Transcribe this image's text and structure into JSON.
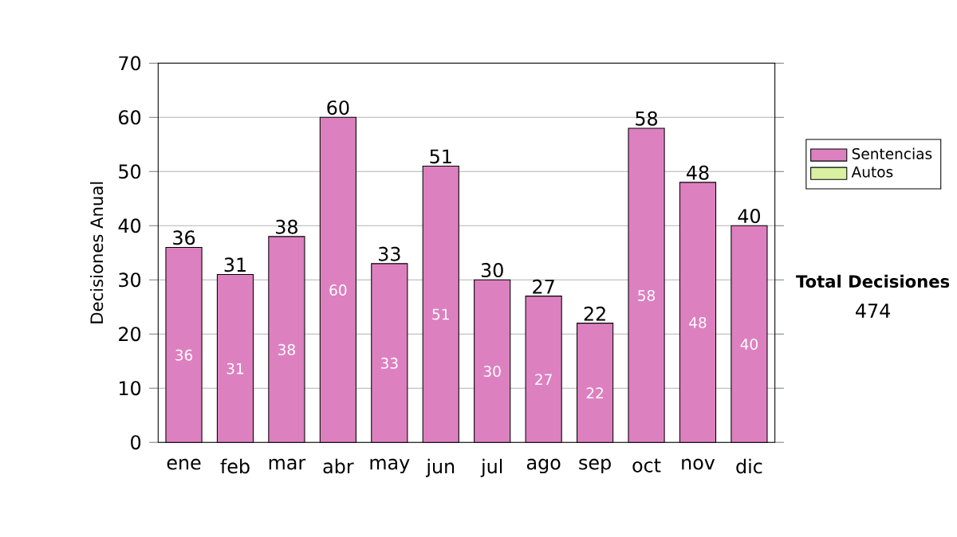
{
  "chart_data": {
    "type": "bar",
    "stacked": true,
    "ylabel": "Decisiones Anual",
    "categories": [
      "ene",
      "feb",
      "mar",
      "abr",
      "may",
      "jun",
      "jul",
      "ago",
      "sep",
      "oct",
      "nov",
      "dic"
    ],
    "series": [
      {
        "name": "Sentencias",
        "color": "#dd80c0",
        "values": [
          36,
          31,
          38,
          60,
          33,
          51,
          30,
          27,
          22,
          58,
          48,
          40
        ],
        "value_labels": [
          "36",
          "31",
          "38",
          "60",
          "33",
          "51",
          "30",
          "27",
          "22",
          "58",
          "48",
          "40"
        ]
      },
      {
        "name": "Autos",
        "color": "#d8f0a0",
        "values": [
          0,
          0,
          0,
          0,
          0,
          0,
          0,
          0,
          0,
          0,
          0,
          0
        ]
      }
    ],
    "ylim": [
      0,
      70
    ],
    "yticks": [
      0,
      10,
      20,
      30,
      40,
      50,
      60,
      70
    ],
    "grid": "y",
    "legend": "right",
    "totals": [
      "36",
      "31",
      "38",
      "60",
      "33",
      "51",
      "30",
      "27",
      "22",
      "58",
      "48",
      "40"
    ],
    "annotations": [
      "Total Decisiones",
      "474"
    ]
  }
}
